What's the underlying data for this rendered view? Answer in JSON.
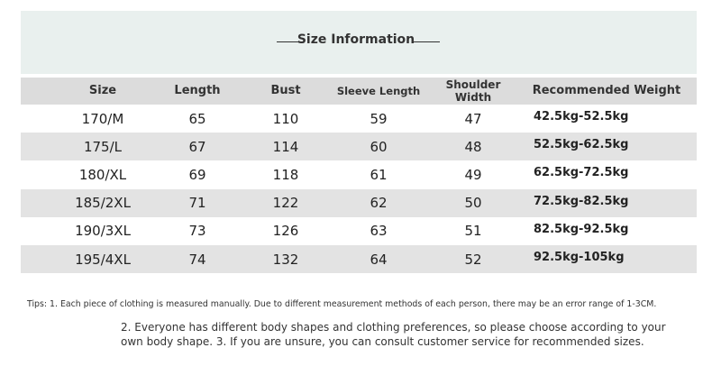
{
  "header": {
    "title": "Size Information"
  },
  "table": {
    "columns": [
      "Size",
      "Length",
      "Bust",
      "Sleeve Length",
      "Shoulder Width",
      "Recommended Weight"
    ],
    "rows": [
      [
        "170/M",
        "65",
        "110",
        "59",
        "47",
        "42.5kg-52.5kg"
      ],
      [
        "175/L",
        "67",
        "114",
        "60",
        "48",
        "52.5kg-62.5kg"
      ],
      [
        "180/XL",
        "69",
        "118",
        "61",
        "49",
        "62.5kg-72.5kg"
      ],
      [
        "185/2XL",
        "71",
        "122",
        "62",
        "50",
        "72.5kg-82.5kg"
      ],
      [
        "190/3XL",
        "73",
        "126",
        "63",
        "51",
        "82.5kg-92.5kg"
      ],
      [
        "195/4XL",
        "74",
        "132",
        "64",
        "52",
        "92.5kg-105kg"
      ]
    ]
  },
  "tips": [
    "Tips: 1. Each piece of clothing is measured manually. Due to different measurement methods of each person, there may be an error range of 1-3CM.",
    "2. Everyone has different body shapes and clothing preferences, so please choose according to your",
    "own body shape. 3. If you are unsure, you can consult customer service for recommended sizes."
  ]
}
